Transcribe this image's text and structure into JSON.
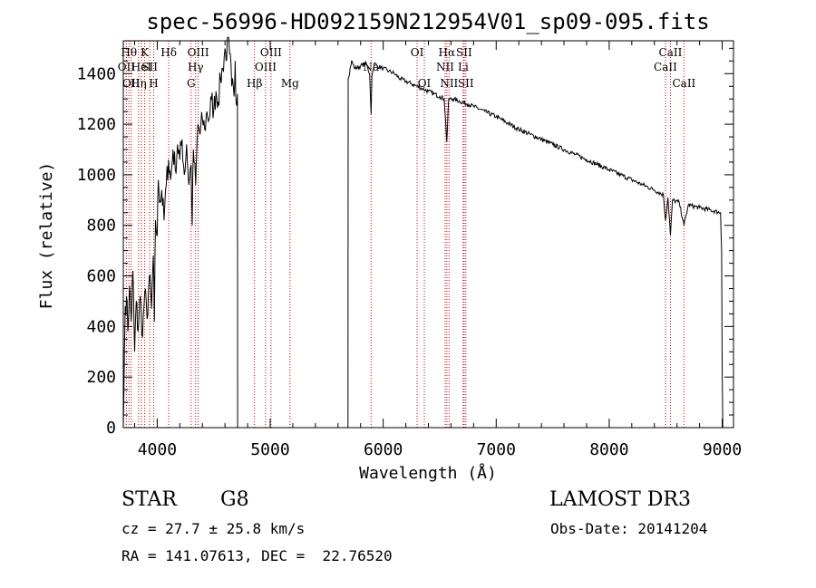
{
  "chart_data": {
    "type": "line",
    "title": "spec-56996-HD092159N212954V01_sp09-095.fits",
    "xlabel": "Wavelength (Å)",
    "ylabel": "Flux (relative)",
    "xlim": [
      3700,
      9100
    ],
    "ylim": [
      0,
      1530
    ],
    "x_ticks": [
      4000,
      5000,
      6000,
      7000,
      8000,
      9000
    ],
    "y_ticks": [
      0,
      200,
      400,
      600,
      800,
      1000,
      1200,
      1400
    ],
    "series": [
      {
        "name": "flux",
        "gap": [
          4710,
          5690
        ],
        "points": [
          [
            3700,
            0
          ],
          [
            3705,
            120
          ],
          [
            3710,
            300
          ],
          [
            3718,
            480
          ],
          [
            3728,
            520
          ],
          [
            3740,
            380
          ],
          [
            3755,
            560
          ],
          [
            3770,
            420
          ],
          [
            3785,
            620
          ],
          [
            3800,
            300
          ],
          [
            3815,
            500
          ],
          [
            3830,
            380
          ],
          [
            3850,
            520
          ],
          [
            3870,
            360
          ],
          [
            3890,
            540
          ],
          [
            3910,
            430
          ],
          [
            3930,
            600
          ],
          [
            3950,
            470
          ],
          [
            3965,
            680
          ],
          [
            3975,
            420
          ],
          [
            3985,
            820
          ],
          [
            4000,
            760
          ],
          [
            4010,
            980
          ],
          [
            4025,
            900
          ],
          [
            4040,
            940
          ],
          [
            4060,
            820
          ],
          [
            4080,
            960
          ],
          [
            4100,
            1060
          ],
          [
            4120,
            980
          ],
          [
            4140,
            1100
          ],
          [
            4160,
            1020
          ],
          [
            4180,
            1120
          ],
          [
            4200,
            1060
          ],
          [
            4220,
            1140
          ],
          [
            4240,
            1000
          ],
          [
            4260,
            1120
          ],
          [
            4280,
            960
          ],
          [
            4300,
            1040
          ],
          [
            4310,
            800
          ],
          [
            4320,
            1100
          ],
          [
            4340,
            960
          ],
          [
            4360,
            1200
          ],
          [
            4380,
            1160
          ],
          [
            4400,
            1220
          ],
          [
            4420,
            1180
          ],
          [
            4440,
            1250
          ],
          [
            4460,
            1220
          ],
          [
            4480,
            1300
          ],
          [
            4500,
            1250
          ],
          [
            4520,
            1330
          ],
          [
            4540,
            1290
          ],
          [
            4560,
            1380
          ],
          [
            4580,
            1420
          ],
          [
            4600,
            1500
          ],
          [
            4610,
            1450
          ],
          [
            4620,
            1540
          ],
          [
            4640,
            1480
          ],
          [
            4660,
            1350
          ],
          [
            4680,
            1310
          ],
          [
            4690,
            1450
          ],
          [
            4700,
            1280
          ],
          [
            4710,
            1320
          ],
          [
            4712,
            0
          ],
          [
            5688,
            0
          ],
          [
            5690,
            1380
          ],
          [
            5720,
            1450
          ],
          [
            5750,
            1420
          ],
          [
            5800,
            1430
          ],
          [
            5850,
            1440
          ],
          [
            5880,
            1400
          ],
          [
            5893,
            1240
          ],
          [
            5900,
            1390
          ],
          [
            5920,
            1440
          ],
          [
            5950,
            1430
          ],
          [
            6000,
            1420
          ],
          [
            6050,
            1410
          ],
          [
            6100,
            1400
          ],
          [
            6150,
            1380
          ],
          [
            6200,
            1370
          ],
          [
            6250,
            1360
          ],
          [
            6300,
            1350
          ],
          [
            6350,
            1340
          ],
          [
            6400,
            1330
          ],
          [
            6450,
            1320
          ],
          [
            6500,
            1310
          ],
          [
            6540,
            1300
          ],
          [
            6563,
            1130
          ],
          [
            6580,
            1300
          ],
          [
            6620,
            1300
          ],
          [
            6680,
            1290
          ],
          [
            6750,
            1280
          ],
          [
            6800,
            1270
          ],
          [
            6900,
            1250
          ],
          [
            7000,
            1230
          ],
          [
            7100,
            1205
          ],
          [
            7200,
            1180
          ],
          [
            7300,
            1160
          ],
          [
            7400,
            1140
          ],
          [
            7500,
            1120
          ],
          [
            7600,
            1100
          ],
          [
            7700,
            1080
          ],
          [
            7800,
            1060
          ],
          [
            7900,
            1040
          ],
          [
            8000,
            1020
          ],
          [
            8100,
            1000
          ],
          [
            8200,
            980
          ],
          [
            8300,
            960
          ],
          [
            8400,
            940
          ],
          [
            8480,
            920
          ],
          [
            8498,
            820
          ],
          [
            8520,
            910
          ],
          [
            8542,
            760
          ],
          [
            8560,
            900
          ],
          [
            8620,
            890
          ],
          [
            8662,
            800
          ],
          [
            8700,
            880
          ],
          [
            8800,
            870
          ],
          [
            8900,
            860
          ],
          [
            8985,
            850
          ],
          [
            8995,
            700
          ],
          [
            9000,
            250
          ],
          [
            9005,
            0
          ]
        ]
      }
    ],
    "line_markers": [
      {
        "wave": 3727,
        "label": "OII",
        "row": 2
      },
      {
        "wave": 3750,
        "label": "Hθ",
        "row": 1
      },
      {
        "wave": 3770,
        "label": "OII",
        "row": 3
      },
      {
        "wave": 3835,
        "label": "Hη",
        "row": 3
      },
      {
        "wave": 3860,
        "label": "HeI",
        "row": 2
      },
      {
        "wave": 3889,
        "label": "K",
        "row": 1
      },
      {
        "wave": 3934,
        "label": "SII",
        "row": 2
      },
      {
        "wave": 3969,
        "label": "H",
        "row": 3
      },
      {
        "wave": 4102,
        "label": "Hδ",
        "row": 1
      },
      {
        "wave": 4300,
        "label": "G",
        "row": 3
      },
      {
        "wave": 4340,
        "label": "Hγ",
        "row": 2
      },
      {
        "wave": 4363,
        "label": "OIII",
        "row": 1
      },
      {
        "wave": 4861,
        "label": "Hβ",
        "row": 3
      },
      {
        "wave": 4959,
        "label": "OIII",
        "row": 2
      },
      {
        "wave": 5007,
        "label": "OIII",
        "row": 1
      },
      {
        "wave": 5175,
        "label": "Mg",
        "row": 3
      },
      {
        "wave": 5893,
        "label": "Na",
        "row": 2
      },
      {
        "wave": 6300,
        "label": "OI",
        "row": 1
      },
      {
        "wave": 6364,
        "label": "OI",
        "row": 3
      },
      {
        "wave": 6548,
        "label": "NII",
        "row": 2
      },
      {
        "wave": 6563,
        "label": "Hα",
        "row": 1
      },
      {
        "wave": 6583,
        "label": "NII",
        "row": 3
      },
      {
        "wave": 6708,
        "label": "Li",
        "row": 2
      },
      {
        "wave": 6716,
        "label": "SII",
        "row": 1
      },
      {
        "wave": 6731,
        "label": "SII",
        "row": 3
      },
      {
        "wave": 8498,
        "label": "CaII",
        "row": 2
      },
      {
        "wave": 8542,
        "label": "CaII",
        "row": 1
      },
      {
        "wave": 8662,
        "label": "CaII",
        "row": 3
      }
    ],
    "marker_color": "#cc0000"
  },
  "info": {
    "class": "STAR",
    "subclass": "G8",
    "survey": "LAMOST DR3",
    "cz": "cz = 27.7 ± 25.8 km/s",
    "obs_date": "Obs-Date: 20141204",
    "coords": "RA = 141.07613, DEC =  22.76520"
  }
}
